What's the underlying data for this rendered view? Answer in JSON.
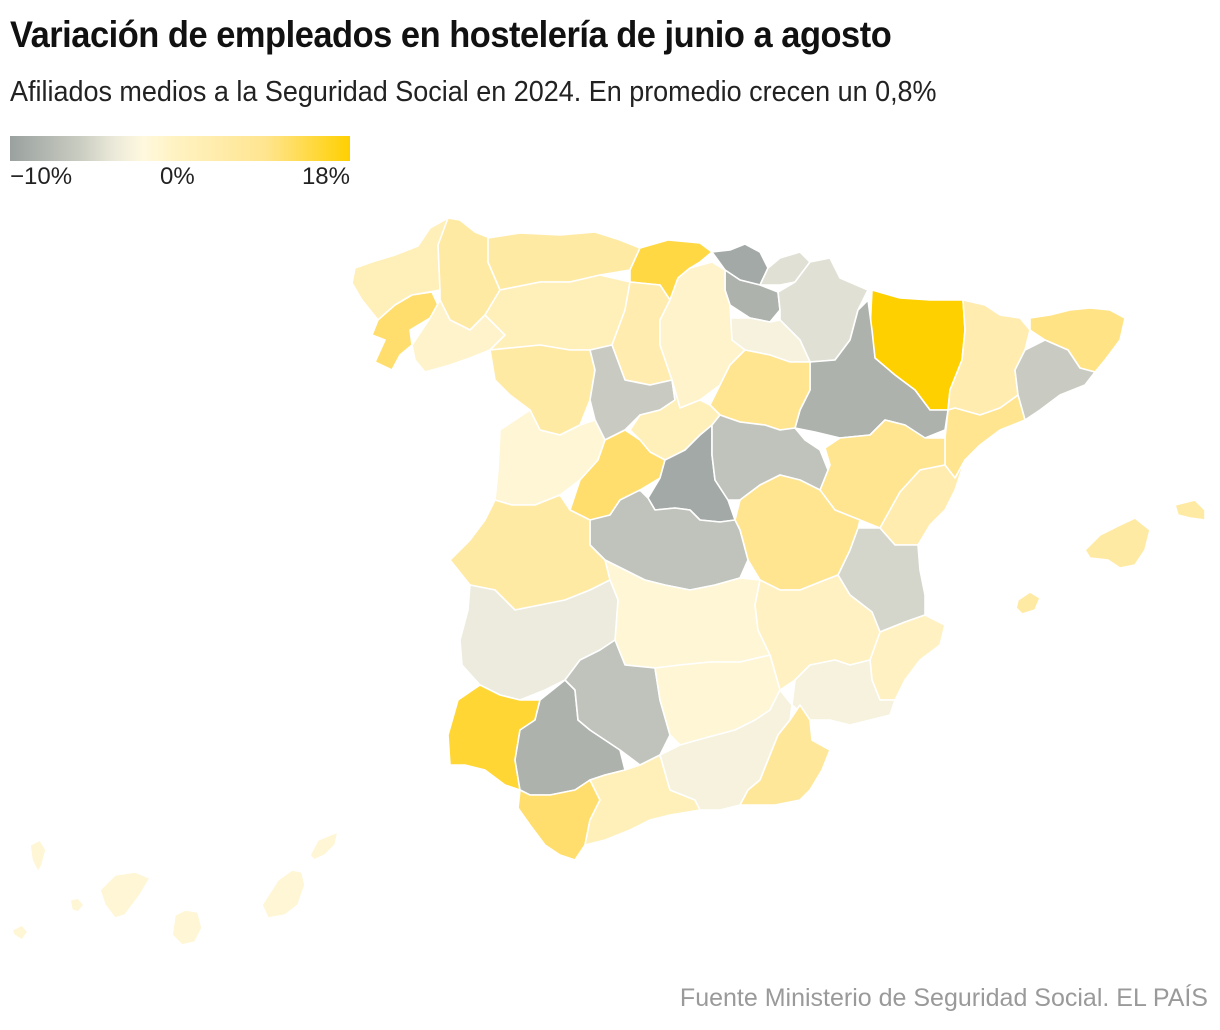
{
  "header": {
    "title": "Variación de empleados en hostelería de junio a agosto",
    "subtitle": "Afiliados medios a la Seguridad Social en 2024. En promedio crecen un 0,8%"
  },
  "legend": {
    "min_label": "−10%",
    "mid_label": "0%",
    "max_label": "18%",
    "min_value": -10,
    "mid_value": 0,
    "max_value": 18,
    "colors": {
      "min": "#9aa19f",
      "mid": "#fff8df",
      "max": "#ffd000"
    }
  },
  "source": "Fuente Ministerio de Seguridad Social. EL PAÍS",
  "chart_data": {
    "type": "choropleth",
    "title": "Variación de empleados en hostelería de junio a agosto",
    "subtitle": "Afiliados medios a la Seguridad Social en 2024. En promedio crecen un 0,8%",
    "scale": {
      "min": -10,
      "mid": 0,
      "max": 18,
      "unit": "%"
    },
    "average": 0.8,
    "regions": [
      {
        "name": "A Coruña",
        "value": 4
      },
      {
        "name": "Lugo",
        "value": 6
      },
      {
        "name": "Pontevedra",
        "value": 11
      },
      {
        "name": "Ourense",
        "value": 2
      },
      {
        "name": "Asturias",
        "value": 6
      },
      {
        "name": "Cantabria",
        "value": 14
      },
      {
        "name": "Bizkaia",
        "value": -9
      },
      {
        "name": "Gipuzkoa",
        "value": -3
      },
      {
        "name": "Álava",
        "value": -8
      },
      {
        "name": "Navarra",
        "value": -3
      },
      {
        "name": "La Rioja",
        "value": -1
      },
      {
        "name": "Huesca",
        "value": 18
      },
      {
        "name": "Lleida",
        "value": 5
      },
      {
        "name": "Girona",
        "value": 9
      },
      {
        "name": "Barcelona",
        "value": -5
      },
      {
        "name": "Tarragona",
        "value": 8
      },
      {
        "name": "Zaragoza",
        "value": -8
      },
      {
        "name": "Teruel",
        "value": 8
      },
      {
        "name": "Castellón",
        "value": 5
      },
      {
        "name": "Valencia",
        "value": -4
      },
      {
        "name": "Alicante",
        "value": 3
      },
      {
        "name": "León",
        "value": 4
      },
      {
        "name": "Palencia",
        "value": 5
      },
      {
        "name": "Burgos",
        "value": 2
      },
      {
        "name": "Soria",
        "value": 8
      },
      {
        "name": "Zamora",
        "value": 6
      },
      {
        "name": "Valladolid",
        "value": -5
      },
      {
        "name": "Segovia",
        "value": 4
      },
      {
        "name": "Salamanca",
        "value": 1
      },
      {
        "name": "Ávila",
        "value": 11
      },
      {
        "name": "Madrid",
        "value": -9
      },
      {
        "name": "Guadalajara",
        "value": -6
      },
      {
        "name": "Cuenca",
        "value": 8
      },
      {
        "name": "Toledo",
        "value": -6
      },
      {
        "name": "Ciudad Real",
        "value": 1
      },
      {
        "name": "Albacete",
        "value": 3
      },
      {
        "name": "Cáceres",
        "value": 6
      },
      {
        "name": "Badajoz",
        "value": -2
      },
      {
        "name": "Murcia",
        "value": -1
      },
      {
        "name": "Huelva",
        "value": 15
      },
      {
        "name": "Sevilla",
        "value": -8
      },
      {
        "name": "Córdoba",
        "value": -6
      },
      {
        "name": "Jaén",
        "value": 1
      },
      {
        "name": "Cádiz",
        "value": 11
      },
      {
        "name": "Málaga",
        "value": 4
      },
      {
        "name": "Granada",
        "value": -1
      },
      {
        "name": "Almería",
        "value": 7
      },
      {
        "name": "Illes Balears",
        "value": 6
      },
      {
        "name": "Santa Cruz de Tenerife",
        "value": 1
      },
      {
        "name": "Las Palmas",
        "value": 1
      }
    ]
  }
}
